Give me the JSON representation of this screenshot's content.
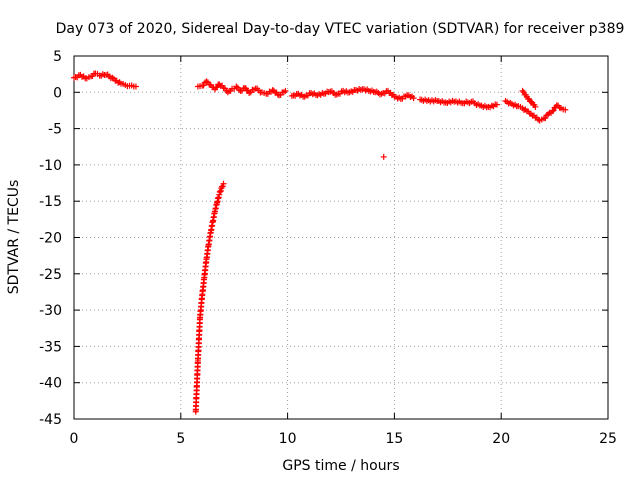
{
  "chart_data": {
    "type": "scatter",
    "title": "Day 073 of 2020, Sidereal Day-to-day VTEC variation (SDTVAR) for receiver p389",
    "xlabel": "GPS time / hours",
    "ylabel": "SDTVAR / TECUs",
    "xlim": [
      0,
      25
    ],
    "ylim": [
      -45,
      5
    ],
    "xticks": [
      0,
      5,
      10,
      15,
      20,
      25
    ],
    "yticks": [
      5,
      0,
      -5,
      -10,
      -15,
      -20,
      -25,
      -30,
      -35,
      -40,
      -45
    ],
    "grid": true,
    "marker": "+",
    "marker_color": "#ff0000",
    "series": [
      {
        "name": "SDTVAR",
        "segments": [
          {
            "x": [
              0.0,
              0.3,
              0.6,
              0.8,
              1.0,
              1.2,
              1.5,
              1.8,
              2.0,
              2.2,
              2.4,
              2.6,
              2.8,
              2.9
            ],
            "y": [
              2.0,
              2.4,
              1.9,
              2.2,
              2.6,
              2.3,
              2.4,
              2.0,
              1.6,
              1.2,
              1.0,
              0.9,
              0.8,
              0.8
            ]
          },
          {
            "x": [
              5.8,
              6.0,
              6.2,
              6.4,
              6.6,
              6.8,
              7.0,
              7.2,
              7.4,
              7.6,
              7.8,
              8.0,
              8.2,
              8.5,
              8.8,
              9.0,
              9.3,
              9.6,
              9.9
            ],
            "y": [
              0.8,
              0.9,
              1.5,
              1.0,
              0.4,
              1.1,
              0.6,
              0.0,
              0.5,
              0.8,
              0.2,
              0.6,
              -0.1,
              0.5,
              0.0,
              -0.2,
              0.3,
              -0.4,
              0.2
            ]
          },
          {
            "x": [
              10.2,
              10.5,
              10.8,
              11.1,
              11.4,
              11.7,
              12.0,
              12.3,
              12.6,
              12.9,
              13.2,
              13.5,
              13.8,
              14.1,
              14.4,
              14.7,
              15.0,
              15.3,
              15.6,
              15.9
            ],
            "y": [
              -0.5,
              -0.2,
              -0.6,
              -0.1,
              -0.4,
              -0.2,
              0.1,
              -0.3,
              0.2,
              0.0,
              0.3,
              0.4,
              0.2,
              0.0,
              -0.2,
              0.2,
              -0.6,
              -0.9,
              -0.4,
              -0.8
            ]
          },
          {
            "x": [
              16.2,
              16.6,
              17.0,
              17.4,
              17.8,
              18.2,
              18.6,
              19.0,
              19.4,
              19.8
            ],
            "y": [
              -1.0,
              -1.1,
              -1.2,
              -1.4,
              -1.3,
              -1.5,
              -1.3,
              -1.8,
              -2.0,
              -1.7
            ]
          },
          {
            "x": [
              20.2,
              20.5,
              20.8,
              21.0,
              21.2,
              21.4,
              21.6,
              21.8,
              22.0,
              22.2,
              22.4,
              22.6,
              22.8,
              23.0
            ],
            "y": [
              -1.2,
              -1.6,
              -1.9,
              -2.2,
              -2.6,
              -3.0,
              -3.5,
              -3.9,
              -3.6,
              -3.0,
              -2.6,
              -1.8,
              -2.2,
              -2.4
            ]
          },
          {
            "x": [
              21.0,
              21.2,
              21.4,
              21.6
            ],
            "y": [
              0.2,
              -0.6,
              -1.3,
              -2.0
            ]
          },
          {
            "x": [
              14.5
            ],
            "y": [
              -8.9
            ]
          },
          {
            "x": [
              5.7,
              5.75,
              5.8,
              5.85,
              5.9,
              6.0,
              6.1,
              6.2,
              6.3,
              6.4,
              6.5,
              6.6,
              6.7,
              6.8,
              6.9,
              7.0
            ],
            "y": [
              -44.0,
              -40.5,
              -37.0,
              -34.0,
              -31.0,
              -28.0,
              -25.5,
              -23.0,
              -21.0,
              -19.3,
              -17.8,
              -16.4,
              -15.2,
              -14.1,
              -13.2,
              -12.6
            ]
          }
        ]
      }
    ]
  }
}
